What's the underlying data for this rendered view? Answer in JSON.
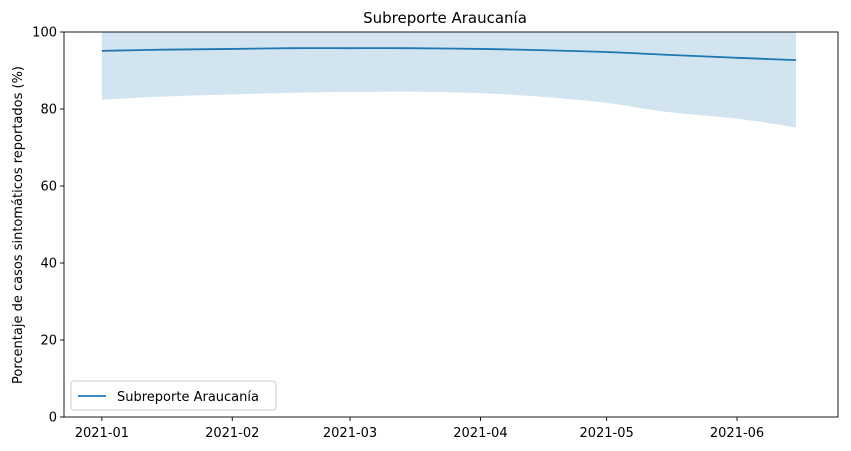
{
  "chart_data": {
    "type": "line",
    "title": "Subreporte Araucanía",
    "xlabel": "",
    "ylabel": "Porcentaje de casos sintomáticos reportados (%)",
    "ylim": [
      0,
      100
    ],
    "xlim": [
      "2020-12-23",
      "2021-06-25"
    ],
    "x_ticks": [
      "2021-01",
      "2021-02",
      "2021-03",
      "2021-04",
      "2021-05",
      "2021-06"
    ],
    "y_ticks": [
      0,
      20,
      40,
      60,
      80,
      100
    ],
    "grid": false,
    "legend_position": "lower-left",
    "series": [
      {
        "name": "Subreporte Araucanía",
        "color": "#1f77b4",
        "x": [
          "2021-01-01",
          "2021-01-15",
          "2021-02-01",
          "2021-02-15",
          "2021-03-01",
          "2021-03-15",
          "2021-04-01",
          "2021-04-15",
          "2021-05-01",
          "2021-05-15",
          "2021-06-01",
          "2021-06-15"
        ],
        "y": [
          95.1,
          95.4,
          95.6,
          95.8,
          95.8,
          95.8,
          95.6,
          95.3,
          94.8,
          94.1,
          93.3,
          92.7
        ],
        "band_lower": [
          82.4,
          83.2,
          83.8,
          84.2,
          84.4,
          84.5,
          84.1,
          83.2,
          81.6,
          79.3,
          77.5,
          75.2
        ],
        "band_upper": [
          100,
          100,
          100,
          100,
          100,
          100,
          100,
          100,
          100,
          100,
          100,
          100
        ],
        "band_color": "#1f77b4",
        "band_opacity": 0.2
      }
    ]
  }
}
